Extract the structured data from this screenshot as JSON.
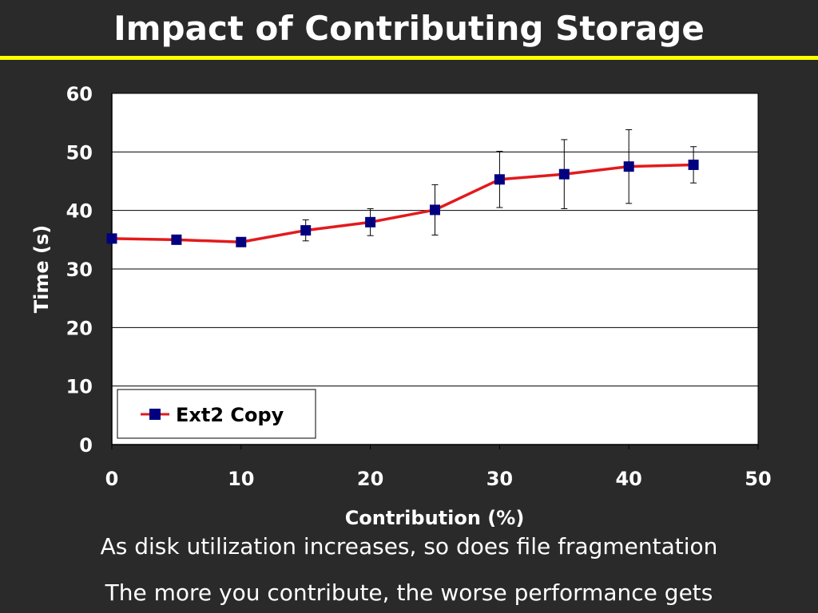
{
  "slide": {
    "title": "Impact of Contributing Storage",
    "rule_color": "#ffff00",
    "bullets": [
      "As disk utilization increases, so does file fragmentation",
      "The more you contribute, the worse performance gets"
    ]
  },
  "chart_data": {
    "type": "line",
    "title": "",
    "xlabel": "Contribution (%)",
    "ylabel": "Time (s)",
    "xlim": [
      0,
      50
    ],
    "ylim": [
      0,
      60
    ],
    "xticks": [
      0,
      10,
      20,
      30,
      40,
      50
    ],
    "yticks": [
      0,
      10,
      20,
      30,
      40,
      50,
      60
    ],
    "grid": {
      "horizontal": true,
      "vertical": false
    },
    "legend_position": "bottom-left",
    "plot_background": "#ffffff",
    "series": [
      {
        "name": "Ext2 Copy",
        "line_color": "#e31a1c",
        "marker_color": "#000080",
        "marker": "square",
        "x": [
          0,
          5,
          10,
          15,
          20,
          25,
          30,
          35,
          40,
          45
        ],
        "y": [
          35.2,
          35.0,
          34.6,
          36.6,
          38.0,
          40.1,
          45.3,
          46.2,
          47.5,
          47.8
        ],
        "error": [
          0,
          0,
          0,
          1.8,
          2.3,
          4.3,
          4.8,
          5.9,
          6.3,
          3.1
        ]
      }
    ]
  }
}
